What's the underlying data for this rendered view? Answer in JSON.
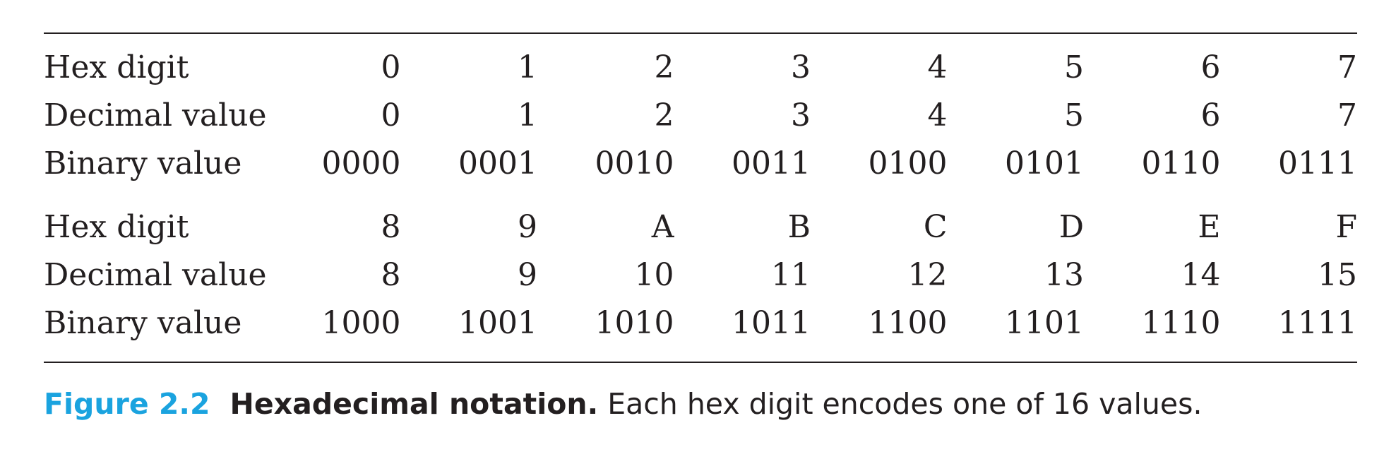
{
  "table": {
    "groups": [
      {
        "rows": [
          {
            "label": "Hex digit",
            "values": [
              "0",
              "1",
              "2",
              "3",
              "4",
              "5",
              "6",
              "7"
            ]
          },
          {
            "label": "Decimal value",
            "values": [
              "0",
              "1",
              "2",
              "3",
              "4",
              "5",
              "6",
              "7"
            ]
          },
          {
            "label": "Binary value",
            "values": [
              "0000",
              "0001",
              "0010",
              "0011",
              "0100",
              "0101",
              "0110",
              "0111"
            ]
          }
        ]
      },
      {
        "rows": [
          {
            "label": "Hex digit",
            "values": [
              "8",
              "9",
              "A",
              "B",
              "C",
              "D",
              "E",
              "F"
            ]
          },
          {
            "label": "Decimal value",
            "values": [
              "8",
              "9",
              "10",
              "11",
              "12",
              "13",
              "14",
              "15"
            ]
          },
          {
            "label": "Binary value",
            "values": [
              "1000",
              "1001",
              "1010",
              "1011",
              "1100",
              "1101",
              "1110",
              "1111"
            ]
          }
        ]
      }
    ]
  },
  "caption": {
    "number": "Figure 2.2",
    "title": "Hexadecimal notation.",
    "text": " Each hex digit encodes one of 16 values.",
    "number_color": "#1aa3df"
  }
}
